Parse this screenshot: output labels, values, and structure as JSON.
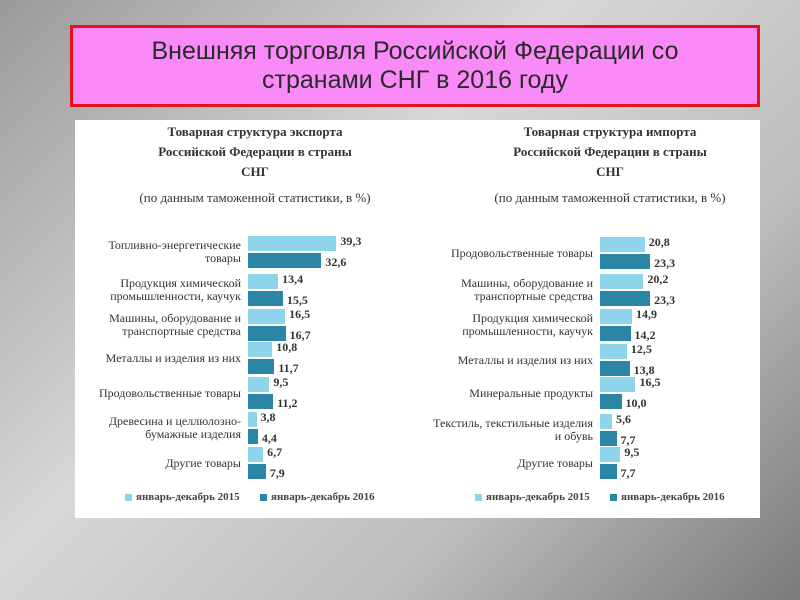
{
  "title": "Внешняя торговля Российской Федерации со странами СНГ в 2016 году",
  "chart_data": [
    {
      "type": "bar",
      "orientation": "horizontal",
      "title": "Товарная структура экспорта Российской Федерации в страны СНГ",
      "subtitle": "(по данным таможенной статистики, в %)",
      "categories": [
        "Топливно-энергетические товары",
        "Продукция химической промышленности, каучук",
        "Машины, оборудование и транспортные средства",
        "Металлы и изделия из них",
        "Продовольственные товары",
        "Древесина и целлюлозно-бумажные изделия",
        "Другие товары"
      ],
      "series": [
        {
          "name": "январь-декабрь 2015",
          "color": "#8ed4ea",
          "values": [
            39.3,
            13.4,
            16.5,
            10.8,
            9.5,
            3.8,
            6.7
          ],
          "value_labels": [
            "39,3",
            "13,4",
            "16,5",
            "10,8",
            "9,5",
            "3,8",
            "6,7"
          ]
        },
        {
          "name": "январь-декабрь 2016",
          "color": "#2b86a6",
          "values": [
            32.6,
            15.5,
            16.7,
            11.7,
            11.2,
            4.4,
            7.9
          ],
          "value_labels": [
            "32,6",
            "15,5",
            "16,7",
            "11,7",
            "11,2",
            "4,4",
            "7,9"
          ]
        }
      ]
    },
    {
      "type": "bar",
      "orientation": "horizontal",
      "title": "Товарная структура импорта Российской Федерации в страны СНГ",
      "subtitle": "(по данным таможенной статистики, в %)",
      "categories": [
        "Продовольственные товары",
        "Машины, оборудование и транспортные средства",
        "Продукция химической промышленности, каучук",
        "Металлы и изделия из них",
        "Минеральные продукты",
        "Текстиль, текстильные изделия и обувь",
        "Другие товары"
      ],
      "series": [
        {
          "name": "январь-декабрь 2015",
          "color": "#8ed4ea",
          "values": [
            20.8,
            20.2,
            14.9,
            12.5,
            16.5,
            5.6,
            9.5
          ],
          "value_labels": [
            "20,8",
            "20,2",
            "14,9",
            "12,5",
            "16,5",
            "5,6",
            "9,5"
          ]
        },
        {
          "name": "январь-декабрь 2016",
          "color": "#2b86a6",
          "values": [
            23.3,
            23.3,
            14.2,
            13.8,
            10.0,
            7.7,
            7.7
          ],
          "value_labels": [
            "23,3",
            "23,3",
            "14,2",
            "13,8",
            "10,0",
            "7,7",
            "7,7"
          ]
        }
      ]
    }
  ]
}
